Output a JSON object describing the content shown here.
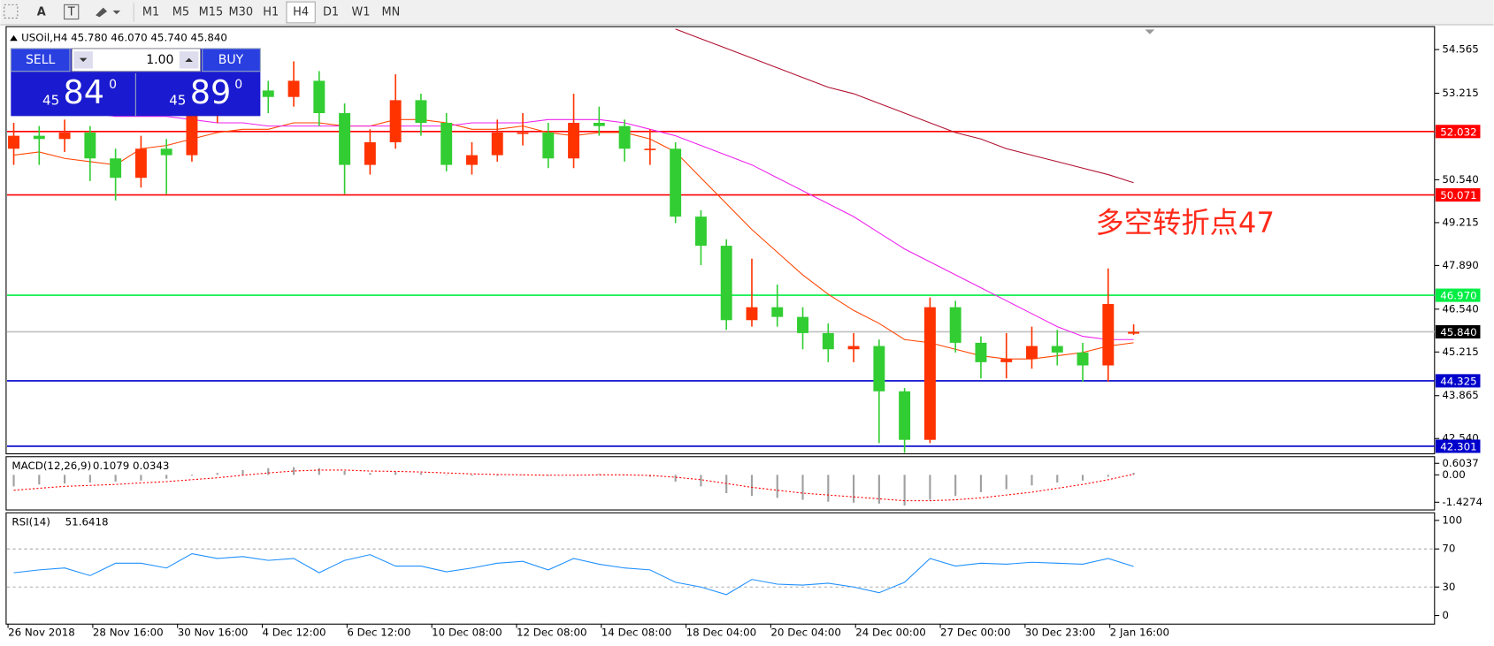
{
  "chart_data": {
    "type": "candlestick",
    "header": "USOil,H4  45.780 46.070 45.740 45.840",
    "annotation": "多空转折点47",
    "annotation_color": "#ff2a1a",
    "up_color": "#ff3300",
    "down_color": "#32cd32",
    "toolbar": {
      "text_tool": "A",
      "label_tool": "T",
      "timeframes": [
        "M1",
        "M5",
        "M15",
        "M30",
        "H1",
        "H4",
        "D1",
        "W1",
        "MN"
      ],
      "active": "H4"
    },
    "trade_panel": {
      "sell": "SELL",
      "buy": "BUY",
      "volume": "1.00",
      "sell_big": "45",
      "sell_digits": "84",
      "sell_sup": "0",
      "buy_big": "45",
      "buy_digits": "89",
      "buy_sup": "0"
    },
    "time_labels": [
      "26 Nov 2018",
      "28 Nov 16:00",
      "30 Nov 16:00",
      "4 Dec 12:00",
      "6 Dec 12:00",
      "10 Dec 08:00",
      "12 Dec 08:00",
      "14 Dec 08:00",
      "18 Dec 04:00",
      "20 Dec 04:00",
      "24 Dec 00:00",
      "27 Dec 00:00",
      "30 Dec 23:00",
      "2 Jan 16:00"
    ],
    "ohlc": [
      [
        51.5,
        52.3,
        51.0,
        51.9
      ],
      [
        51.9,
        52.2,
        51.0,
        51.8
      ],
      [
        51.8,
        52.4,
        51.4,
        52.0
      ],
      [
        52.0,
        52.2,
        50.5,
        51.2
      ],
      [
        51.2,
        51.5,
        49.9,
        50.6
      ],
      [
        50.6,
        51.9,
        50.3,
        51.5
      ],
      [
        51.5,
        51.8,
        50.1,
        51.3
      ],
      [
        51.3,
        52.9,
        51.1,
        52.6
      ],
      [
        52.6,
        53.4,
        52.3,
        52.9
      ],
      [
        52.9,
        53.8,
        52.7,
        53.3
      ],
      [
        53.3,
        53.6,
        52.6,
        53.1
      ],
      [
        53.1,
        54.2,
        52.8,
        53.6
      ],
      [
        53.6,
        53.9,
        52.2,
        52.6
      ],
      [
        52.6,
        52.9,
        50.1,
        51.0
      ],
      [
        51.0,
        52.1,
        50.7,
        51.7
      ],
      [
        51.7,
        53.8,
        51.5,
        53.0
      ],
      [
        53.0,
        53.2,
        51.9,
        52.3
      ],
      [
        52.3,
        52.6,
        50.8,
        51.0
      ],
      [
        51.0,
        51.7,
        50.7,
        51.3
      ],
      [
        51.3,
        52.4,
        51.1,
        52.0
      ],
      [
        52.0,
        52.6,
        51.6,
        52.0
      ],
      [
        52.0,
        52.3,
        50.9,
        51.2
      ],
      [
        51.2,
        53.2,
        50.9,
        52.3
      ],
      [
        52.3,
        52.8,
        51.9,
        52.2
      ],
      [
        52.2,
        52.4,
        51.1,
        51.5
      ],
      [
        51.5,
        52.1,
        51.0,
        51.5
      ],
      [
        51.5,
        51.7,
        49.2,
        49.4
      ],
      [
        49.4,
        49.6,
        47.9,
        48.5
      ],
      [
        48.5,
        48.7,
        45.9,
        46.2
      ],
      [
        46.2,
        48.1,
        46.0,
        46.6
      ],
      [
        46.6,
        47.3,
        46.0,
        46.3
      ],
      [
        46.3,
        46.6,
        45.3,
        45.8
      ],
      [
        45.8,
        46.1,
        44.9,
        45.3
      ],
      [
        45.3,
        45.8,
        44.9,
        45.4
      ],
      [
        45.4,
        45.6,
        42.4,
        44.0
      ],
      [
        44.0,
        44.1,
        42.1,
        42.5
      ],
      [
        42.5,
        46.9,
        42.4,
        46.6
      ],
      [
        46.6,
        46.8,
        45.2,
        45.5
      ],
      [
        45.5,
        45.7,
        44.4,
        44.9
      ],
      [
        44.9,
        45.8,
        44.4,
        45.0
      ],
      [
        45.0,
        46.0,
        44.7,
        45.4
      ],
      [
        45.4,
        45.9,
        44.8,
        45.2
      ],
      [
        45.2,
        45.5,
        44.3,
        44.8
      ],
      [
        44.8,
        47.8,
        44.3,
        46.7
      ],
      [
        45.78,
        46.07,
        45.74,
        45.84
      ]
    ],
    "moving_averages": [
      {
        "color": "#ff4500",
        "values": [
          51.3,
          51.4,
          51.2,
          51.1,
          51.0,
          51.5,
          51.6,
          51.8,
          52.0,
          52.1,
          52.1,
          52.3,
          52.3,
          52.2,
          52.2,
          52.4,
          52.4,
          52.3,
          52.1,
          52.1,
          52.2,
          52.0,
          51.9,
          52.0,
          52.0,
          51.8,
          51.4,
          50.6,
          49.8,
          49.0,
          48.3,
          47.6,
          47.0,
          46.5,
          46.1,
          45.6,
          45.5,
          45.3,
          45.1,
          45.0,
          45.0,
          45.1,
          45.2,
          45.4,
          45.5
        ]
      },
      {
        "color": "#ee22ee",
        "values": [
          52.9,
          52.8,
          52.7,
          52.6,
          52.5,
          52.5,
          52.5,
          52.4,
          52.3,
          52.3,
          52.2,
          52.2,
          52.2,
          52.2,
          52.2,
          52.2,
          52.2,
          52.2,
          52.3,
          52.3,
          52.3,
          52.4,
          52.4,
          52.4,
          52.3,
          52.1,
          51.9,
          51.6,
          51.3,
          51.0,
          50.6,
          50.2,
          49.8,
          49.4,
          48.9,
          48.4,
          48.0,
          47.6,
          47.2,
          46.8,
          46.4,
          46.0,
          45.7,
          45.6,
          45.6
        ]
      },
      {
        "color": "#b01030",
        "values": [
          null,
          null,
          null,
          null,
          null,
          null,
          null,
          null,
          null,
          null,
          null,
          null,
          null,
          null,
          null,
          null,
          null,
          null,
          null,
          null,
          null,
          null,
          null,
          null,
          null,
          null,
          55.2,
          54.9,
          54.6,
          54.3,
          54.0,
          53.7,
          53.4,
          53.2,
          52.9,
          52.6,
          52.3,
          52.0,
          51.8,
          51.5,
          51.3,
          51.1,
          50.9,
          50.7,
          50.45
        ]
      }
    ],
    "ylim": [
      42.097,
      55.215
    ],
    "yticks": [
      54.565,
      53.215,
      {
        "value": 50.54,
        "label": "50.540"
      },
      49.215,
      {
        "value": 47.89,
        "label": "47.890"
      },
      {
        "value": 46.54,
        "label": "46.540"
      },
      45.215,
      43.865,
      {
        "value": 42.54,
        "label": "42.540"
      }
    ],
    "levels": [
      {
        "value": 52.032,
        "label": "52.032",
        "color": "#ff0000",
        "box_color": "#ff0000"
      },
      {
        "value": 50.071,
        "label": "50.071",
        "color": "#ff0000",
        "box_color": "#ff0000"
      },
      {
        "value": 46.97,
        "label": "46.970",
        "color": "#00ee44",
        "box_color": "#00ee44"
      },
      {
        "value": 45.84,
        "label": "45.840",
        "color": "#c0c0c0",
        "box_color": "#000000"
      },
      {
        "value": 44.325,
        "label": "44.325",
        "color": "#0000cc",
        "box_color": "#0000cc"
      },
      {
        "value": 42.301,
        "label": "42.301",
        "color": "#0000cc",
        "box_color": "#0000cc"
      }
    ],
    "macd": {
      "title": "MACD(12,26,9)",
      "value_label": "0.1079 0.0343",
      "ylim": [
        -1.78,
        0.9
      ],
      "yticks": [
        0.6037,
        {
          "value": 0,
          "label": "0.00"
        },
        -1.4274
      ],
      "hist_color": "#a0a0a0",
      "signal_color": "#ff0000",
      "histogram": [
        -0.6,
        -0.5,
        -0.45,
        -0.4,
        -0.35,
        -0.3,
        -0.2,
        -0.05,
        0.1,
        0.25,
        0.35,
        0.4,
        0.35,
        0.2,
        0.1,
        0.15,
        0.1,
        0.0,
        -0.05,
        -0.05,
        0.0,
        -0.05,
        0.0,
        0.05,
        0.0,
        -0.1,
        -0.35,
        -0.6,
        -0.95,
        -1.1,
        -1.2,
        -1.3,
        -1.4,
        -1.45,
        -1.5,
        -1.6,
        -1.3,
        -1.1,
        -0.9,
        -0.75,
        -0.55,
        -0.4,
        -0.3,
        -0.1,
        0.1079
      ],
      "signal": [
        -0.8,
        -0.7,
        -0.6,
        -0.55,
        -0.5,
        -0.42,
        -0.35,
        -0.25,
        -0.15,
        -0.02,
        0.1,
        0.2,
        0.25,
        0.25,
        0.2,
        0.18,
        0.15,
        0.1,
        0.05,
        0.02,
        0.0,
        -0.02,
        -0.02,
        0.0,
        0.0,
        -0.03,
        -0.12,
        -0.25,
        -0.45,
        -0.65,
        -0.8,
        -0.95,
        -1.05,
        -1.15,
        -1.25,
        -1.35,
        -1.35,
        -1.3,
        -1.2,
        -1.05,
        -0.9,
        -0.7,
        -0.5,
        -0.25,
        0.0343
      ]
    },
    "rsi": {
      "title": "RSI(14)",
      "value_label": "51.6418",
      "ylim": [
        -8,
        107
      ],
      "yticks": [
        100,
        70,
        30,
        0
      ],
      "levels": [
        70,
        30
      ],
      "color": "#1e90ff",
      "values": [
        45,
        48,
        50,
        42,
        55,
        55,
        50,
        65,
        60,
        62,
        58,
        60,
        45,
        58,
        64,
        52,
        52,
        46,
        50,
        55,
        57,
        48,
        60,
        54,
        50,
        48,
        35,
        30,
        22,
        38,
        33,
        32,
        34,
        30,
        24,
        35,
        60,
        52,
        55,
        54,
        56,
        55,
        54,
        60,
        51.6418
      ]
    }
  }
}
